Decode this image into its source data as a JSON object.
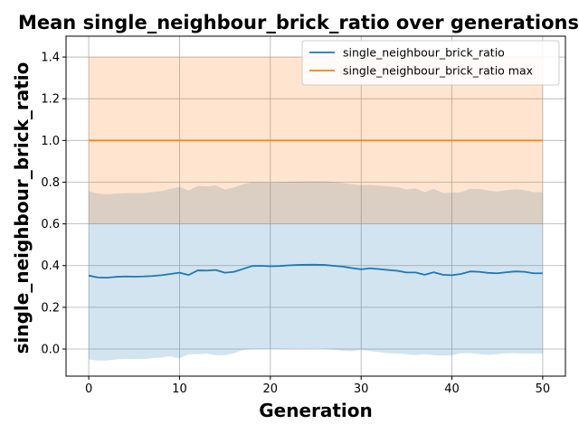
{
  "chart_data": {
    "type": "line",
    "title": "Mean single_neighbour_brick_ratio over generations",
    "xlabel": "Generation",
    "ylabel": "single_neighbour_brick_ratio",
    "xlim": [
      -2.5,
      52.5
    ],
    "ylim": [
      -0.13,
      1.5
    ],
    "xticks": [
      0,
      10,
      20,
      30,
      40,
      50
    ],
    "yticks": [
      0.0,
      0.2,
      0.4,
      0.6,
      0.8,
      1.0,
      1.2,
      1.4
    ],
    "xtick_labels": [
      "0",
      "10",
      "20",
      "30",
      "40",
      "50"
    ],
    "ytick_labels": [
      "0.0",
      "0.2",
      "0.4",
      "0.6",
      "0.8",
      "1.0",
      "1.2",
      "1.4"
    ],
    "grid": true,
    "legend_position": "top-right",
    "x": [
      0,
      1,
      2,
      3,
      4,
      5,
      6,
      7,
      8,
      9,
      10,
      11,
      12,
      13,
      14,
      15,
      16,
      17,
      18,
      19,
      20,
      21,
      22,
      23,
      24,
      25,
      26,
      27,
      28,
      29,
      30,
      31,
      32,
      33,
      34,
      35,
      36,
      37,
      38,
      39,
      40,
      41,
      42,
      43,
      44,
      45,
      46,
      47,
      48,
      49,
      50
    ],
    "series": [
      {
        "name": "single_neighbour_brick_ratio",
        "color": "#1f77b4",
        "band_color": "#1f77b4",
        "values": [
          0.352,
          0.343,
          0.342,
          0.346,
          0.348,
          0.347,
          0.348,
          0.35,
          0.354,
          0.36,
          0.366,
          0.355,
          0.377,
          0.376,
          0.379,
          0.366,
          0.37,
          0.384,
          0.398,
          0.399,
          0.397,
          0.398,
          0.401,
          0.403,
          0.404,
          0.404,
          0.403,
          0.399,
          0.395,
          0.388,
          0.382,
          0.387,
          0.383,
          0.379,
          0.375,
          0.367,
          0.367,
          0.356,
          0.368,
          0.356,
          0.354,
          0.36,
          0.372,
          0.37,
          0.365,
          0.363,
          0.368,
          0.372,
          0.37,
          0.363,
          0.363
        ],
        "band_lower": [
          -0.05,
          -0.055,
          -0.055,
          -0.05,
          -0.047,
          -0.048,
          -0.048,
          -0.044,
          -0.04,
          -0.035,
          -0.045,
          -0.025,
          -0.025,
          -0.022,
          -0.03,
          -0.03,
          -0.02,
          -0.005,
          0.0,
          0.0,
          0.0,
          0.0,
          0.001,
          0.002,
          0.002,
          0.002,
          0.001,
          -0.003,
          -0.008,
          -0.01,
          -0.005,
          -0.01,
          -0.015,
          -0.02,
          -0.022,
          -0.025,
          -0.03,
          -0.025,
          -0.03,
          -0.032,
          -0.03,
          -0.02,
          -0.02,
          -0.025,
          -0.028,
          -0.025,
          -0.02,
          -0.02,
          -0.022,
          -0.022,
          -0.022
        ],
        "band_upper": [
          0.757,
          0.745,
          0.742,
          0.745,
          0.748,
          0.748,
          0.748,
          0.752,
          0.757,
          0.768,
          0.777,
          0.76,
          0.782,
          0.78,
          0.784,
          0.765,
          0.775,
          0.79,
          0.8,
          0.8,
          0.799,
          0.8,
          0.802,
          0.803,
          0.804,
          0.804,
          0.804,
          0.801,
          0.796,
          0.79,
          0.785,
          0.787,
          0.783,
          0.78,
          0.776,
          0.765,
          0.77,
          0.752,
          0.768,
          0.748,
          0.75,
          0.752,
          0.768,
          0.768,
          0.76,
          0.755,
          0.762,
          0.766,
          0.762,
          0.752,
          0.752
        ]
      },
      {
        "name": "single_neighbour_brick_ratio max",
        "color": "#ff7f0e",
        "band_color": "#ff7f0e",
        "values": [
          1.0,
          1.0,
          1.0,
          1.0,
          1.0,
          1.0,
          1.0,
          1.0,
          1.0,
          1.0,
          1.0,
          1.0,
          1.0,
          1.0,
          1.0,
          1.0,
          1.0,
          1.0,
          1.0,
          1.0,
          1.0,
          1.0,
          1.0,
          1.0,
          1.0,
          1.0,
          1.0,
          1.0,
          1.0,
          1.0,
          1.0,
          1.0,
          1.0,
          1.0,
          1.0,
          1.0,
          1.0,
          1.0,
          1.0,
          1.0,
          1.0,
          1.0,
          1.0,
          1.0,
          1.0,
          1.0,
          1.0,
          1.0,
          1.0,
          1.0,
          1.0
        ],
        "band_lower": [
          0.6,
          0.6,
          0.6,
          0.6,
          0.6,
          0.6,
          0.6,
          0.6,
          0.6,
          0.6,
          0.6,
          0.6,
          0.6,
          0.6,
          0.6,
          0.6,
          0.6,
          0.6,
          0.6,
          0.6,
          0.6,
          0.6,
          0.6,
          0.6,
          0.6,
          0.6,
          0.6,
          0.6,
          0.6,
          0.6,
          0.6,
          0.6,
          0.6,
          0.6,
          0.6,
          0.6,
          0.6,
          0.6,
          0.6,
          0.6,
          0.6,
          0.6,
          0.6,
          0.6,
          0.6,
          0.6,
          0.6,
          0.6,
          0.6,
          0.6,
          0.6
        ],
        "band_upper": [
          1.4,
          1.4,
          1.4,
          1.4,
          1.4,
          1.4,
          1.4,
          1.4,
          1.4,
          1.4,
          1.4,
          1.4,
          1.4,
          1.4,
          1.4,
          1.4,
          1.4,
          1.4,
          1.4,
          1.4,
          1.4,
          1.4,
          1.4,
          1.4,
          1.4,
          1.4,
          1.4,
          1.4,
          1.4,
          1.4,
          1.4,
          1.4,
          1.4,
          1.4,
          1.4,
          1.4,
          1.4,
          1.4,
          1.4,
          1.4,
          1.4,
          1.4,
          1.4,
          1.4,
          1.4,
          1.4,
          1.4,
          1.4,
          1.4,
          1.4,
          1.4
        ]
      }
    ]
  }
}
